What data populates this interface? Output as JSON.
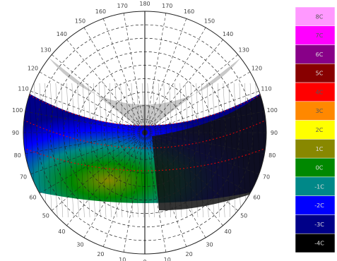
{
  "chart_data": {
    "type": "heatmap",
    "projection": "polar sun-path / stereographic sky dome",
    "azimuth_labels": [
      {
        "text": "180",
        "az": 180
      },
      {
        "text": "170",
        "az": 170
      },
      {
        "text": "160",
        "az": 160
      },
      {
        "text": "150",
        "az": 150
      },
      {
        "text": "140",
        "az": 140
      },
      {
        "text": "130",
        "az": 130
      },
      {
        "text": "120",
        "az": 120
      },
      {
        "text": "110",
        "az": 110
      },
      {
        "text": "100",
        "az": 100
      },
      {
        "text": "90",
        "az": 90
      },
      {
        "text": "80",
        "az": 80
      },
      {
        "text": "70",
        "az": 70
      },
      {
        "text": "60",
        "az": 60
      },
      {
        "text": "50",
        "az": 50
      },
      {
        "text": "40",
        "az": 40
      },
      {
        "text": "30",
        "az": 30
      },
      {
        "text": "20",
        "az": 20
      },
      {
        "text": "10",
        "az": 10
      },
      {
        "text": "0",
        "az": 0
      },
      {
        "text": "10",
        "az": -10
      },
      {
        "text": "20",
        "az": -20
      },
      {
        "text": "30",
        "az": -30
      },
      {
        "text": "40",
        "az": -40
      },
      {
        "text": "50",
        "az": -50
      },
      {
        "text": "60",
        "az": -60
      },
      {
        "text": "70",
        "az": -70
      },
      {
        "text": "80",
        "az": -80
      },
      {
        "text": "90",
        "az": -90
      },
      {
        "text": "100",
        "az": -100
      },
      {
        "text": "110",
        "az": -110
      },
      {
        "text": "120",
        "az": -120
      },
      {
        "text": "130",
        "az": -130
      },
      {
        "text": "140",
        "az": -140
      },
      {
        "text": "150",
        "az": -150
      },
      {
        "text": "160",
        "az": -160
      },
      {
        "text": "170",
        "az": -170
      }
    ],
    "altitude_rings": [
      10,
      20,
      30,
      40,
      50,
      60,
      70,
      80
    ],
    "shaded_sector_azimuth": [
      -128,
      128
    ],
    "legend": {
      "entries": [
        {
          "label": "8C",
          "color": "#ff99ff"
        },
        {
          "label": "7C",
          "color": "#ff00ff"
        },
        {
          "label": "6C",
          "color": "#880088"
        },
        {
          "label": "5C",
          "color": "#880000"
        },
        {
          "label": "4C",
          "color": "#ff0000"
        },
        {
          "label": "3C",
          "color": "#ff8800"
        },
        {
          "label": "2C",
          "color": "#ffff00"
        },
        {
          "label": "1C",
          "color": "#888800"
        },
        {
          "label": "0C",
          "color": "#008800"
        },
        {
          "label": "-1C",
          "color": "#008888"
        },
        {
          "label": "-2C",
          "color": "#0000ff"
        },
        {
          "label": "-3C",
          "color": "#000088"
        },
        {
          "label": "-4C",
          "color": "#000000"
        }
      ]
    }
  }
}
